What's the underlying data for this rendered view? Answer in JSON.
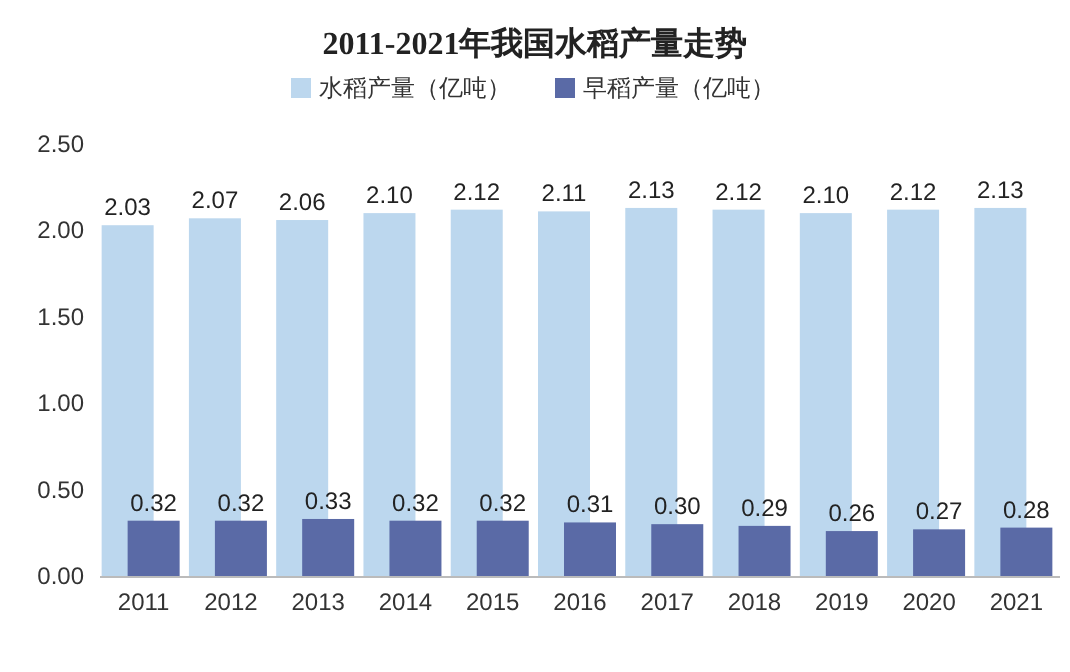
{
  "chart_data": {
    "type": "bar",
    "title": "2011-2021年我国水稻产量走势",
    "categories": [
      "2011",
      "2012",
      "2013",
      "2014",
      "2015",
      "2016",
      "2017",
      "2018",
      "2019",
      "2020",
      "2021"
    ],
    "series": [
      {
        "name": "水稻产量（亿吨）",
        "color": "#bcd7ee",
        "values": [
          2.03,
          2.07,
          2.06,
          2.1,
          2.12,
          2.11,
          2.13,
          2.12,
          2.1,
          2.12,
          2.13
        ],
        "value_labels": [
          "2.03",
          "2.07",
          "2.06",
          "2.10",
          "2.12",
          "2.11",
          "2.13",
          "2.12",
          "2.10",
          "2.12",
          "2.13"
        ]
      },
      {
        "name": "早稻产量（亿吨）",
        "color": "#5a6aa6",
        "values": [
          0.32,
          0.32,
          0.33,
          0.32,
          0.32,
          0.31,
          0.3,
          0.29,
          0.26,
          0.27,
          0.28
        ],
        "value_labels": [
          "0.32",
          "0.32",
          "0.33",
          "0.32",
          "0.32",
          "0.31",
          "0.30",
          "0.29",
          "0.26",
          "0.27",
          "0.28"
        ]
      }
    ],
    "ylim": [
      0,
      2.5
    ],
    "yticks": [
      {
        "value": 0,
        "label": "0.00"
      },
      {
        "value": 0.5,
        "label": "0.50"
      },
      {
        "value": 1,
        "label": "1.00"
      },
      {
        "value": 1.5,
        "label": "1.50"
      },
      {
        "value": 2,
        "label": "2.00"
      },
      {
        "value": 2.5,
        "label": "2.50"
      }
    ],
    "legend": "top"
  }
}
